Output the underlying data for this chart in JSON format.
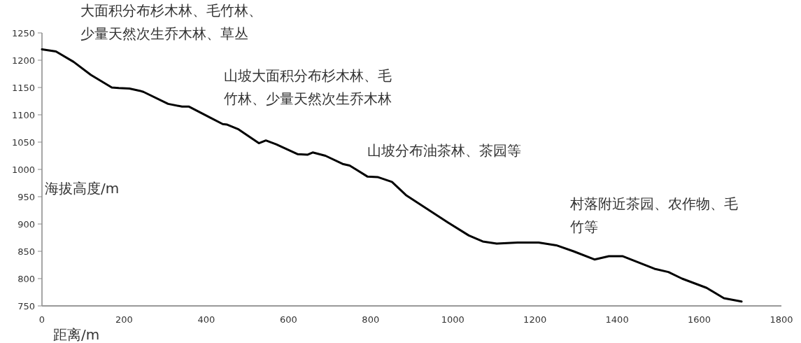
{
  "chart_data": {
    "type": "line",
    "xlabel": "距离/m",
    "ylabel": "海拔高度/m",
    "x": [
      0,
      34,
      77,
      119,
      170,
      187,
      213,
      238,
      247,
      307,
      341,
      358,
      409,
      440,
      451,
      477,
      528,
      545,
      570,
      622,
      647,
      659,
      690,
      732,
      749,
      792,
      817,
      852,
      886,
      937,
      988,
      1039,
      1073,
      1107,
      1158,
      1209,
      1252,
      1294,
      1345,
      1380,
      1414,
      1491,
      1525,
      1558,
      1618,
      1660,
      1703
    ],
    "series": [
      {
        "color": "#000000",
        "values": [
          1220,
          1216,
          1197,
          1173,
          1150,
          1149,
          1148,
          1144,
          1142,
          1120,
          1115,
          1115,
          1095,
          1083,
          1082,
          1074,
          1048,
          1053,
          1046,
          1028,
          1027,
          1031,
          1025,
          1010,
          1007,
          987,
          986,
          977,
          953,
          928,
          903,
          879,
          868,
          864,
          866,
          866,
          861,
          850,
          835,
          841,
          841,
          818,
          812,
          800,
          783,
          764,
          758
        ]
      }
    ],
    "xlim": [
      0,
      1800
    ],
    "xticks": [
      0,
      200,
      400,
      600,
      800,
      1000,
      1200,
      1400,
      1600,
      1800
    ],
    "ylim": [
      750,
      1250
    ],
    "yticks": [
      750,
      800,
      850,
      900,
      950,
      1000,
      1050,
      1100,
      1150,
      1200,
      1250
    ],
    "grid": false,
    "marker": "none",
    "line_style": "solid",
    "annotations": [
      "大面积分布杉木林、毛竹林、少量天然次生乔木林、草丛",
      "山坡大面积分布杉木林、毛竹林、少量天然次生乔木林",
      "山坡分布油茶林、茶园等",
      "村落附近茶园、农作物、毛竹等"
    ]
  }
}
